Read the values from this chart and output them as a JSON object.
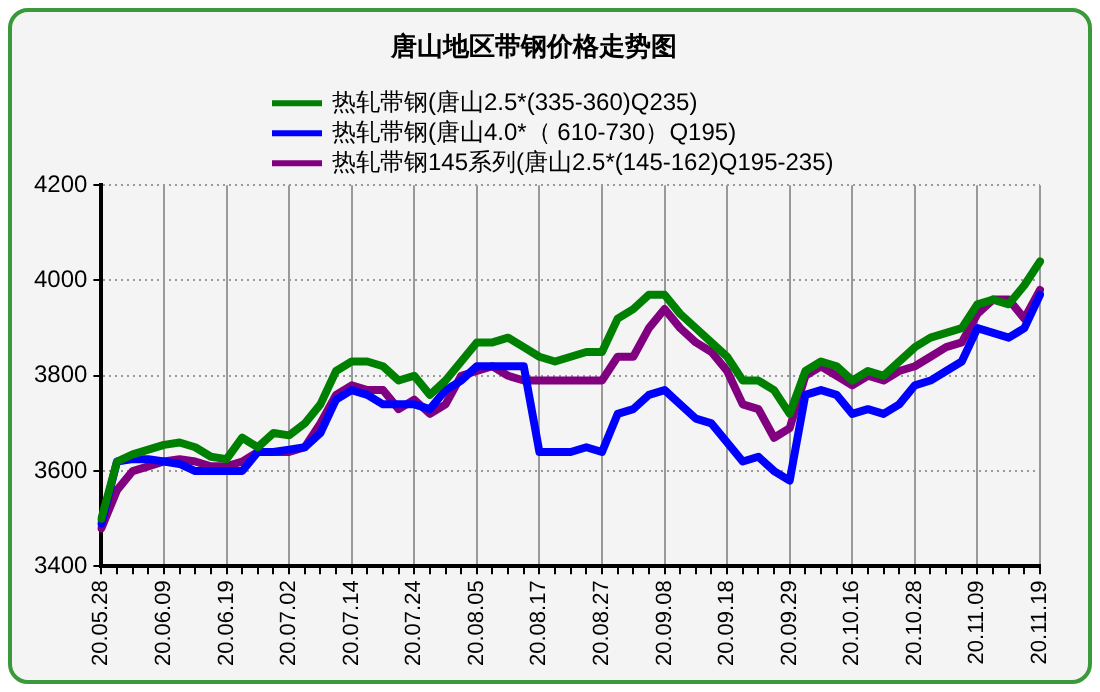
{
  "chart_data": {
    "type": "line",
    "title": "唐山地区带钢价格走势图",
    "categories": [
      "20.05.28",
      null,
      null,
      null,
      "20.06.09",
      null,
      null,
      null,
      "20.06.19",
      null,
      null,
      null,
      "20.07.02",
      null,
      null,
      null,
      "20.07.14",
      null,
      null,
      null,
      "20.07.24",
      null,
      null,
      null,
      "20.08.05",
      null,
      null,
      null,
      "20.08.17",
      null,
      null,
      null,
      "20.08.27",
      null,
      null,
      null,
      "20.09.08",
      null,
      null,
      null,
      "20.09.18",
      null,
      null,
      null,
      "20.09.29",
      null,
      null,
      null,
      "20.10.16",
      null,
      null,
      null,
      "20.10.28",
      null,
      null,
      null,
      "20.11.09",
      null,
      null,
      null,
      "20.11.19"
    ],
    "series": [
      {
        "name": "热轧带钢(唐山2.5*(335-360)Q235)",
        "color": "#008000",
        "values": [
          3500,
          3620,
          3635,
          3645,
          3655,
          3660,
          3650,
          3630,
          3625,
          3670,
          3650,
          3680,
          3675,
          3700,
          3740,
          3810,
          3830,
          3830,
          3820,
          3790,
          3800,
          3760,
          3790,
          3830,
          3870,
          3870,
          3880,
          3860,
          3840,
          3830,
          3840,
          3850,
          3850,
          3920,
          3940,
          3970,
          3970,
          3930,
          3900,
          3870,
          3840,
          3790,
          3790,
          3770,
          3720,
          3810,
          3830,
          3820,
          3790,
          3810,
          3800,
          3830,
          3860,
          3880,
          3890,
          3900,
          3950,
          3960,
          3950,
          3990,
          4040
        ]
      },
      {
        "name": "热轧带钢(唐山4.0*（ 610-730）Q195)",
        "color": "#0000ff",
        "values": [
          3490,
          3620,
          3625,
          3625,
          3620,
          3615,
          3600,
          3600,
          3600,
          3600,
          3640,
          3640,
          3645,
          3650,
          3680,
          3750,
          3770,
          3760,
          3740,
          3740,
          3740,
          3730,
          3770,
          3790,
          3820,
          3820,
          3820,
          3820,
          3640,
          3640,
          3640,
          3650,
          3640,
          3720,
          3730,
          3760,
          3770,
          3740,
          3710,
          3700,
          3660,
          3620,
          3630,
          3600,
          3580,
          3760,
          3770,
          3760,
          3720,
          3730,
          3720,
          3740,
          3780,
          3790,
          3810,
          3830,
          3900,
          3890,
          3880,
          3900,
          3970
        ]
      },
      {
        "name": "热轧带钢145系列(唐山2.5*(145-162)Q195-235)",
        "color": "#800080",
        "values": [
          3480,
          3560,
          3600,
          3610,
          3620,
          3625,
          3620,
          3610,
          3610,
          3620,
          3640,
          3640,
          3640,
          3650,
          3700,
          3760,
          3780,
          3770,
          3770,
          3730,
          3750,
          3720,
          3740,
          3800,
          3810,
          3820,
          3800,
          3790,
          3790,
          3790,
          3790,
          3790,
          3790,
          3840,
          3840,
          3900,
          3940,
          3900,
          3870,
          3850,
          3810,
          3740,
          3730,
          3670,
          3690,
          3800,
          3820,
          3800,
          3780,
          3800,
          3790,
          3810,
          3820,
          3840,
          3860,
          3870,
          3930,
          3960,
          3960,
          3920,
          3980
        ]
      }
    ],
    "ylim": [
      3400,
      4200
    ],
    "yticks": [
      3400,
      3600,
      3800,
      4000,
      4200
    ],
    "grid": true,
    "legend": "top",
    "marker": "none",
    "line_style": "solid"
  }
}
